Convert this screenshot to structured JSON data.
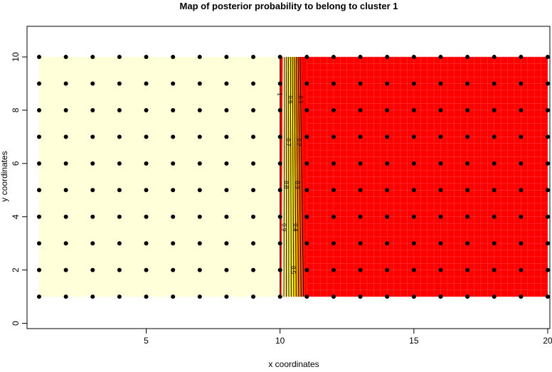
{
  "chart_data": {
    "type": "heatmap",
    "title": "Map of posterior probability to belong to cluster  1",
    "xlabel": "x coordinates",
    "ylabel": "y coordinates",
    "xlim": [
      1,
      20
    ],
    "ylim": [
      -0.2,
      11.15
    ],
    "xticks": [
      5,
      10,
      15,
      20
    ],
    "yticks": [
      0,
      2,
      4,
      6,
      8,
      10
    ],
    "grid_points": {
      "x": [
        1,
        2,
        3,
        4,
        5,
        6,
        7,
        8,
        9,
        10,
        11,
        12,
        13,
        14,
        15,
        16,
        17,
        18,
        19,
        20
      ],
      "y": [
        1,
        2,
        3,
        4,
        5,
        6,
        7,
        8,
        9,
        10
      ]
    },
    "probability_surface": {
      "value_left_of_x10": 1,
      "value_right_of_x11": 0,
      "transition_x": [
        10,
        11
      ]
    },
    "contour_levels": [
      1,
      0.9,
      0.8,
      0.7,
      0.6,
      0.5,
      0.4,
      0.3,
      0.2,
      0.1
    ],
    "contour_labels": [
      "1",
      "0.9",
      "0.8",
      "0.7",
      "0.6",
      "0.5",
      "0.4",
      "0.3",
      "0.2",
      "0.1"
    ],
    "colors": {
      "high": "#FFFFD9",
      "low": "#FF0000",
      "points": "#000000"
    },
    "grid": false
  }
}
